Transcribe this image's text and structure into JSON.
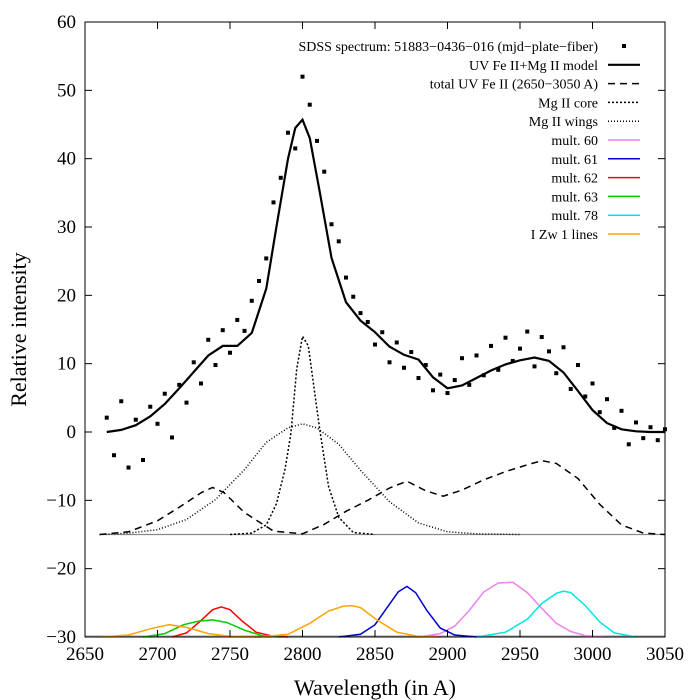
{
  "chart_data": {
    "type": "line",
    "title": "",
    "xlabel": "Wavelength (in A)",
    "ylabel": "Relative intensity",
    "xlim": [
      2650,
      3050
    ],
    "ylim": [
      -30,
      60
    ],
    "xticks": [
      2650,
      2700,
      2750,
      2800,
      2850,
      2900,
      2950,
      3000,
      3050
    ],
    "yticks": [
      -30,
      -20,
      -10,
      0,
      10,
      20,
      30,
      40,
      50,
      60
    ],
    "grid": false,
    "legend_position": "top-right",
    "baseline_level": -15,
    "series": [
      {
        "name": "SDSS spectrum: 51883−0436−016 (mjd−plate−fiber)",
        "kind": "points",
        "color": "#000000",
        "x": [
          2665,
          2670,
          2675,
          2680,
          2685,
          2690,
          2695,
          2700,
          2705,
          2710,
          2715,
          2720,
          2725,
          2730,
          2735,
          2740,
          2745,
          2750,
          2755,
          2760,
          2765,
          2770,
          2775,
          2780,
          2785,
          2790,
          2795,
          2800,
          2805,
          2810,
          2815,
          2820,
          2825,
          2830,
          2835,
          2840,
          2845,
          2850,
          2855,
          2860,
          2865,
          2870,
          2875,
          2880,
          2885,
          2890,
          2895,
          2900,
          2905,
          2910,
          2915,
          2920,
          2925,
          2930,
          2935,
          2940,
          2945,
          2950,
          2955,
          2960,
          2965,
          2970,
          2975,
          2980,
          2985,
          2990,
          2995,
          3000,
          3005,
          3010,
          3015,
          3020,
          3025,
          3030,
          3035,
          3040,
          3045,
          3050
        ],
        "y": [
          2.1,
          -3.4,
          4.5,
          -5.2,
          1.8,
          -4.1,
          3.7,
          1.2,
          5.6,
          -0.8,
          6.9,
          4.3,
          10.2,
          7.1,
          13.5,
          9.8,
          14.9,
          11.6,
          16.4,
          14.8,
          19.2,
          22.1,
          25.4,
          33.6,
          37.2,
          43.8,
          41.5,
          52.0,
          47.9,
          42.6,
          38.1,
          30.4,
          27.9,
          22.6,
          19.8,
          17.4,
          16.1,
          12.8,
          14.6,
          10.2,
          13.1,
          9.4,
          11.7,
          7.9,
          9.8,
          6.1,
          8.4,
          5.7,
          7.6,
          10.8,
          6.9,
          11.2,
          8.3,
          12.6,
          9.1,
          13.8,
          10.4,
          12.2,
          14.7,
          9.6,
          13.9,
          11.8,
          8.6,
          12.4,
          6.3,
          9.8,
          5.2,
          7.1,
          2.9,
          4.8,
          0.6,
          3.1,
          -1.8,
          1.4,
          -0.9,
          0.7,
          -1.2,
          0.4
        ]
      },
      {
        "name": "UV Fe II+Mg II model",
        "kind": "line",
        "color": "#000000",
        "x": [
          2665,
          2675,
          2685,
          2695,
          2705,
          2715,
          2725,
          2735,
          2745,
          2755,
          2765,
          2775,
          2782,
          2790,
          2795,
          2800,
          2805,
          2812,
          2820,
          2830,
          2840,
          2850,
          2860,
          2870,
          2880,
          2890,
          2900,
          2910,
          2920,
          2930,
          2940,
          2950,
          2960,
          2970,
          2980,
          2990,
          3000,
          3010,
          3020,
          3030,
          3040,
          3050
        ],
        "y": [
          0.0,
          0.3,
          1.0,
          2.3,
          4.1,
          6.4,
          8.8,
          11.2,
          12.6,
          12.6,
          14.5,
          21.0,
          30.0,
          40.0,
          44.5,
          45.7,
          43.0,
          35.0,
          25.5,
          19.0,
          16.3,
          14.6,
          12.5,
          11.3,
          10.6,
          8.0,
          6.4,
          6.8,
          7.9,
          9.0,
          9.9,
          10.5,
          10.9,
          10.4,
          8.7,
          6.0,
          3.2,
          1.3,
          0.4,
          0.1,
          0.0,
          0.0
        ]
      },
      {
        "name": "total UV Fe II (2650−3050 A)",
        "kind": "line",
        "color": "#000000",
        "dash": "7,5",
        "x": [
          2660,
          2680,
          2700,
          2715,
          2730,
          2738,
          2746,
          2760,
          2780,
          2800,
          2815,
          2830,
          2845,
          2860,
          2872,
          2885,
          2897,
          2910,
          2925,
          2940,
          2955,
          2965,
          2975,
          2990,
          3005,
          3020,
          3035,
          3050
        ],
        "y": [
          -15.0,
          -14.6,
          -13.0,
          -11.0,
          -8.9,
          -8.1,
          -8.9,
          -11.8,
          -14.5,
          -14.9,
          -13.5,
          -11.6,
          -10.0,
          -8.2,
          -7.2,
          -8.6,
          -9.4,
          -8.5,
          -7.0,
          -5.8,
          -4.8,
          -4.2,
          -4.6,
          -6.8,
          -10.6,
          -13.6,
          -14.8,
          -15.0
        ]
      },
      {
        "name": "Mg II core",
        "kind": "line",
        "color": "#000000",
        "dash": "2,2",
        "x": [
          2750,
          2765,
          2775,
          2782,
          2788,
          2792,
          2796,
          2800,
          2804,
          2808,
          2812,
          2818,
          2825,
          2835,
          2850
        ],
        "y": [
          -15.0,
          -14.8,
          -13.6,
          -10.5,
          -5.4,
          -0.2,
          9.2,
          14.0,
          12.6,
          6.4,
          0.2,
          -8.0,
          -12.5,
          -14.7,
          -15.0
        ]
      },
      {
        "name": "Mg II wings",
        "kind": "line",
        "color": "#000000",
        "dash": "1,2",
        "x": [
          2660,
          2680,
          2700,
          2720,
          2740,
          2760,
          2775,
          2790,
          2800,
          2810,
          2825,
          2840,
          2860,
          2880,
          2900,
          2920,
          2950
        ],
        "y": [
          -15.0,
          -14.8,
          -14.3,
          -12.8,
          -9.9,
          -5.5,
          -1.5,
          0.6,
          1.2,
          0.6,
          -1.8,
          -5.6,
          -10.2,
          -13.3,
          -14.6,
          -14.9,
          -15.0
        ]
      },
      {
        "name": "mult. 60",
        "kind": "line",
        "color": "#ee82ee",
        "x": [
          2880,
          2895,
          2905,
          2915,
          2925,
          2935,
          2945,
          2955,
          2965,
          2975,
          2985,
          2995,
          3010
        ],
        "y": [
          -30.0,
          -29.5,
          -28.4,
          -26.1,
          -23.4,
          -22.1,
          -22.0,
          -23.5,
          -25.8,
          -28.0,
          -29.2,
          -29.8,
          -30.0
        ]
      },
      {
        "name": "mult. 61",
        "kind": "line",
        "color": "#0000cc",
        "x": [
          2825,
          2840,
          2850,
          2860,
          2866,
          2872,
          2878,
          2886,
          2895,
          2905,
          2920
        ],
        "y": [
          -30.0,
          -29.6,
          -28.2,
          -25.2,
          -23.4,
          -22.6,
          -23.5,
          -26.2,
          -28.7,
          -29.7,
          -30.0
        ]
      },
      {
        "name": "mult. 62",
        "kind": "line",
        "color": "#ff0000",
        "x": [
          2710,
          2720,
          2730,
          2738,
          2744,
          2750,
          2758,
          2768,
          2780,
          2790
        ],
        "y": [
          -30.0,
          -29.4,
          -27.6,
          -26.0,
          -25.6,
          -26.0,
          -27.6,
          -29.3,
          -29.9,
          -30.0
        ]
      },
      {
        "name": "mult. 63",
        "kind": "line",
        "color": "#00cc00",
        "x": [
          2690,
          2705,
          2718,
          2728,
          2738,
          2748,
          2760,
          2772,
          2785
        ],
        "y": [
          -30.0,
          -29.5,
          -28.2,
          -27.7,
          -27.5,
          -27.9,
          -29.0,
          -29.8,
          -30.0
        ]
      },
      {
        "name": "mult. 78",
        "kind": "line",
        "color": "#00e5e5",
        "x": [
          2920,
          2940,
          2955,
          2965,
          2975,
          2980,
          2985,
          2995,
          3005,
          3015,
          3030
        ],
        "y": [
          -30.0,
          -29.3,
          -27.4,
          -25.1,
          -23.6,
          -23.3,
          -23.5,
          -25.4,
          -27.8,
          -29.4,
          -30.0
        ]
      },
      {
        "name": "I Zw 1 lines",
        "kind": "line",
        "color": "#ffa500",
        "x": [
          2660,
          2680,
          2695,
          2708,
          2720,
          2735,
          2750,
          2770,
          2790,
          2805,
          2818,
          2828,
          2834,
          2840,
          2852,
          2865,
          2880,
          2895
        ],
        "y": [
          -30.0,
          -29.7,
          -28.8,
          -28.2,
          -28.6,
          -29.5,
          -29.9,
          -30.0,
          -29.6,
          -28.0,
          -26.2,
          -25.5,
          -25.4,
          -25.7,
          -27.6,
          -29.3,
          -29.9,
          -30.0
        ]
      }
    ]
  }
}
